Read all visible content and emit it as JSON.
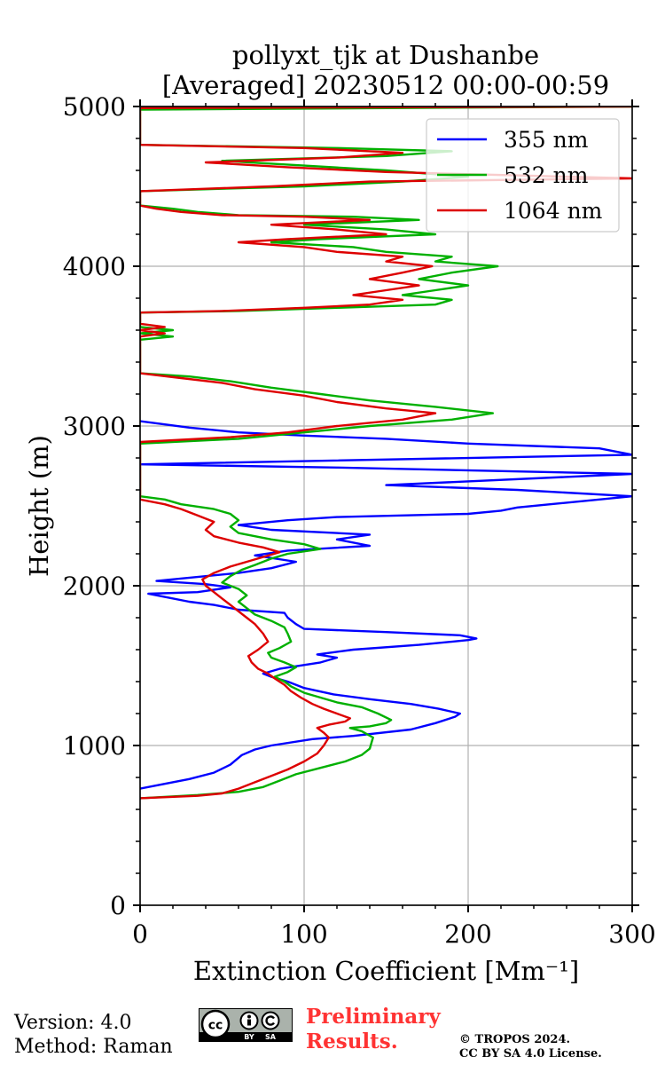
{
  "chart_data": {
    "type": "line",
    "title": [
      "pollyxt_tjk at Dushanbe",
      "[Averaged] 20230512 00:00-00:59"
    ],
    "xlabel": "Extinction Coefficient [Mm⁻¹]",
    "ylabel": "Height (m)",
    "xlim": [
      0,
      300
    ],
    "ylim": [
      0,
      5000
    ],
    "xticks": [
      "0",
      "100",
      "200",
      "300"
    ],
    "yticks": [
      "0",
      "1000",
      "2000",
      "3000",
      "4000",
      "5000"
    ],
    "grid": true,
    "legend_position": "top-right",
    "series": [
      {
        "name": "355 nm",
        "color": "#0000ff",
        "points": [
          [
            0,
            730
          ],
          [
            15,
            760
          ],
          [
            30,
            790
          ],
          [
            45,
            830
          ],
          [
            55,
            880
          ],
          [
            62,
            940
          ],
          [
            70,
            975
          ],
          [
            80,
            1000
          ],
          [
            105,
            1040
          ],
          [
            130,
            1060
          ],
          [
            165,
            1100
          ],
          [
            180,
            1140
          ],
          [
            192,
            1180
          ],
          [
            195,
            1200
          ],
          [
            182,
            1230
          ],
          [
            165,
            1260
          ],
          [
            140,
            1290
          ],
          [
            118,
            1320
          ],
          [
            100,
            1360
          ],
          [
            90,
            1400
          ],
          [
            80,
            1430
          ],
          [
            75,
            1450
          ],
          [
            85,
            1480
          ],
          [
            110,
            1520
          ],
          [
            120,
            1550
          ],
          [
            108,
            1570
          ],
          [
            130,
            1600
          ],
          [
            170,
            1630
          ],
          [
            200,
            1660
          ],
          [
            205,
            1670
          ],
          [
            195,
            1690
          ],
          [
            150,
            1710
          ],
          [
            100,
            1730
          ],
          [
            95,
            1760
          ],
          [
            90,
            1800
          ],
          [
            88,
            1830
          ],
          [
            60,
            1850
          ],
          [
            45,
            1880
          ],
          [
            30,
            1900
          ],
          [
            15,
            1930
          ],
          [
            5,
            1950
          ],
          [
            35,
            1960
          ],
          [
            55,
            1990
          ],
          [
            40,
            2010
          ],
          [
            10,
            2030
          ],
          [
            60,
            2080
          ],
          [
            80,
            2110
          ],
          [
            95,
            2150
          ],
          [
            70,
            2190
          ],
          [
            90,
            2220
          ],
          [
            140,
            2250
          ],
          [
            120,
            2290
          ],
          [
            140,
            2320
          ],
          [
            80,
            2350
          ],
          [
            60,
            2380
          ],
          [
            90,
            2410
          ],
          [
            120,
            2430
          ],
          [
            200,
            2450
          ],
          [
            220,
            2470
          ],
          [
            230,
            2490
          ],
          [
            250,
            2510
          ],
          [
            300,
            2560
          ],
          [
            230,
            2600
          ],
          [
            150,
            2630
          ],
          [
            300,
            2700
          ],
          [
            120,
            2740
          ],
          [
            0,
            2760
          ],
          [
            300,
            2820
          ],
          [
            280,
            2860
          ],
          [
            200,
            2890
          ],
          [
            150,
            2920
          ],
          [
            100,
            2940
          ],
          [
            60,
            2960
          ],
          [
            30,
            2990
          ],
          [
            15,
            3010
          ],
          [
            0,
            3030
          ]
        ]
      },
      {
        "name": "532 nm",
        "color": "#00b000",
        "points": [
          [
            0,
            670
          ],
          [
            35,
            690
          ],
          [
            60,
            710
          ],
          [
            75,
            740
          ],
          [
            85,
            780
          ],
          [
            95,
            820
          ],
          [
            110,
            860
          ],
          [
            125,
            900
          ],
          [
            135,
            940
          ],
          [
            140,
            980
          ],
          [
            142,
            1050
          ],
          [
            135,
            1090
          ],
          [
            128,
            1110
          ],
          [
            140,
            1120
          ],
          [
            150,
            1140
          ],
          [
            153,
            1160
          ],
          [
            145,
            1200
          ],
          [
            135,
            1240
          ],
          [
            120,
            1270
          ],
          [
            110,
            1300
          ],
          [
            100,
            1330
          ],
          [
            92,
            1370
          ],
          [
            88,
            1400
          ],
          [
            82,
            1430
          ],
          [
            90,
            1460
          ],
          [
            95,
            1490
          ],
          [
            88,
            1520
          ],
          [
            80,
            1550
          ],
          [
            78,
            1580
          ],
          [
            85,
            1610
          ],
          [
            92,
            1650
          ],
          [
            90,
            1700
          ],
          [
            88,
            1740
          ],
          [
            80,
            1780
          ],
          [
            70,
            1820
          ],
          [
            65,
            1860
          ],
          [
            60,
            1900
          ],
          [
            65,
            1940
          ],
          [
            60,
            1980
          ],
          [
            50,
            2020
          ],
          [
            55,
            2060
          ],
          [
            62,
            2100
          ],
          [
            70,
            2130
          ],
          [
            80,
            2170
          ],
          [
            90,
            2200
          ],
          [
            110,
            2230
          ],
          [
            100,
            2260
          ],
          [
            80,
            2290
          ],
          [
            60,
            2330
          ],
          [
            55,
            2370
          ],
          [
            60,
            2410
          ],
          [
            55,
            2450
          ],
          [
            45,
            2480
          ],
          [
            25,
            2510
          ],
          [
            15,
            2540
          ],
          [
            0,
            2560
          ],
          [
            0,
            2890
          ],
          [
            60,
            2920
          ],
          [
            100,
            2960
          ],
          [
            140,
            3000
          ],
          [
            190,
            3040
          ],
          [
            215,
            3080
          ],
          [
            180,
            3120
          ],
          [
            140,
            3160
          ],
          [
            110,
            3200
          ],
          [
            80,
            3240
          ],
          [
            55,
            3280
          ],
          [
            30,
            3310
          ],
          [
            0,
            3330
          ],
          [
            0,
            3540
          ],
          [
            20,
            3560
          ],
          [
            0,
            3580
          ],
          [
            20,
            3600
          ],
          [
            0,
            3620
          ],
          [
            0,
            3710
          ],
          [
            60,
            3720
          ],
          [
            120,
            3740
          ],
          [
            180,
            3760
          ],
          [
            190,
            3790
          ],
          [
            160,
            3820
          ],
          [
            180,
            3850
          ],
          [
            200,
            3880
          ],
          [
            170,
            3920
          ],
          [
            190,
            3960
          ],
          [
            218,
            4000
          ],
          [
            180,
            4030
          ],
          [
            190,
            4060
          ],
          [
            150,
            4090
          ],
          [
            130,
            4120
          ],
          [
            80,
            4150
          ],
          [
            110,
            4170
          ],
          [
            180,
            4200
          ],
          [
            150,
            4230
          ],
          [
            100,
            4260
          ],
          [
            170,
            4290
          ],
          [
            130,
            4310
          ],
          [
            60,
            4320
          ],
          [
            35,
            4340
          ],
          [
            20,
            4360
          ],
          [
            0,
            4380
          ],
          [
            0,
            4470
          ],
          [
            100,
            4500
          ],
          [
            160,
            4530
          ],
          [
            200,
            4560
          ],
          [
            150,
            4600
          ],
          [
            100,
            4630
          ],
          [
            50,
            4660
          ],
          [
            150,
            4690
          ],
          [
            190,
            4720
          ],
          [
            120,
            4740
          ],
          [
            0,
            4760
          ],
          [
            0,
            4980
          ],
          [
            300,
            5000
          ]
        ]
      },
      {
        "name": "1064 nm",
        "color": "#dd0000",
        "points": [
          [
            0,
            670
          ],
          [
            35,
            685
          ],
          [
            50,
            700
          ],
          [
            60,
            730
          ],
          [
            70,
            770
          ],
          [
            80,
            810
          ],
          [
            90,
            850
          ],
          [
            100,
            900
          ],
          [
            108,
            950
          ],
          [
            112,
            1000
          ],
          [
            115,
            1050
          ],
          [
            112,
            1080
          ],
          [
            108,
            1110
          ],
          [
            115,
            1130
          ],
          [
            125,
            1150
          ],
          [
            128,
            1170
          ],
          [
            120,
            1200
          ],
          [
            112,
            1230
          ],
          [
            105,
            1260
          ],
          [
            98,
            1300
          ],
          [
            92,
            1340
          ],
          [
            88,
            1380
          ],
          [
            82,
            1420
          ],
          [
            78,
            1450
          ],
          [
            72,
            1480
          ],
          [
            68,
            1520
          ],
          [
            66,
            1560
          ],
          [
            72,
            1600
          ],
          [
            78,
            1650
          ],
          [
            75,
            1700
          ],
          [
            70,
            1760
          ],
          [
            65,
            1800
          ],
          [
            60,
            1840
          ],
          [
            55,
            1880
          ],
          [
            50,
            1920
          ],
          [
            45,
            1960
          ],
          [
            40,
            2000
          ],
          [
            38,
            2040
          ],
          [
            45,
            2080
          ],
          [
            55,
            2120
          ],
          [
            65,
            2150
          ],
          [
            75,
            2180
          ],
          [
            85,
            2210
          ],
          [
            75,
            2240
          ],
          [
            60,
            2270
          ],
          [
            45,
            2310
          ],
          [
            40,
            2350
          ],
          [
            45,
            2400
          ],
          [
            35,
            2440
          ],
          [
            25,
            2480
          ],
          [
            15,
            2510
          ],
          [
            0,
            2540
          ],
          [
            0,
            2900
          ],
          [
            55,
            2930
          ],
          [
            90,
            2960
          ],
          [
            120,
            3000
          ],
          [
            160,
            3040
          ],
          [
            180,
            3080
          ],
          [
            150,
            3110
          ],
          [
            120,
            3150
          ],
          [
            100,
            3190
          ],
          [
            70,
            3230
          ],
          [
            50,
            3270
          ],
          [
            25,
            3300
          ],
          [
            0,
            3330
          ],
          [
            0,
            3560
          ],
          [
            15,
            3580
          ],
          [
            0,
            3600
          ],
          [
            15,
            3620
          ],
          [
            0,
            3640
          ],
          [
            0,
            3710
          ],
          [
            50,
            3720
          ],
          [
            100,
            3740
          ],
          [
            140,
            3760
          ],
          [
            160,
            3790
          ],
          [
            130,
            3820
          ],
          [
            150,
            3850
          ],
          [
            170,
            3880
          ],
          [
            140,
            3920
          ],
          [
            160,
            3960
          ],
          [
            178,
            4000
          ],
          [
            150,
            4030
          ],
          [
            160,
            4060
          ],
          [
            120,
            4090
          ],
          [
            100,
            4120
          ],
          [
            60,
            4150
          ],
          [
            90,
            4170
          ],
          [
            150,
            4200
          ],
          [
            120,
            4230
          ],
          [
            80,
            4260
          ],
          [
            140,
            4290
          ],
          [
            100,
            4310
          ],
          [
            50,
            4320
          ],
          [
            25,
            4340
          ],
          [
            10,
            4360
          ],
          [
            0,
            4380
          ],
          [
            0,
            4470
          ],
          [
            80,
            4500
          ],
          [
            140,
            4530
          ],
          [
            300,
            4550
          ],
          [
            150,
            4590
          ],
          [
            90,
            4620
          ],
          [
            40,
            4650
          ],
          [
            120,
            4680
          ],
          [
            160,
            4710
          ],
          [
            100,
            4740
          ],
          [
            0,
            4760
          ],
          [
            0,
            4990
          ],
          [
            300,
            5000
          ]
        ]
      }
    ]
  },
  "footer": {
    "version": "Version: 4.0",
    "method": "Method: Raman",
    "preliminary_line1": "Preliminary",
    "preliminary_line2": "Results.",
    "preliminary_color": "#ff3333",
    "copyright_line1": "© TROPOS 2024.",
    "copyright_line2": "CC BY SA 4.0 License.",
    "license_logo_text": [
      "cc",
      "BY",
      "SA"
    ]
  }
}
